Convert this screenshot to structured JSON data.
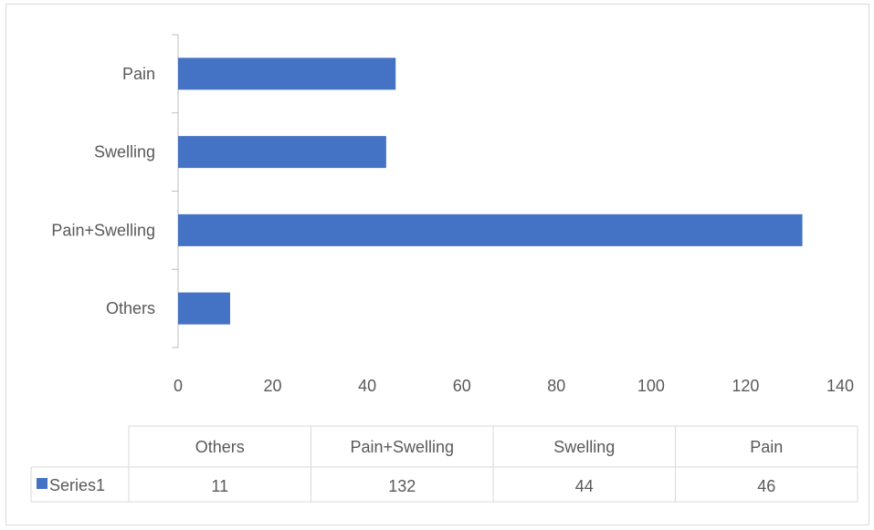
{
  "chart_data": {
    "type": "bar",
    "orientation": "horizontal",
    "categories": [
      "Others",
      "Pain+Swelling",
      "Swelling",
      "Pain"
    ],
    "series": [
      {
        "name": "Series1",
        "values": [
          11,
          132,
          44,
          46
        ],
        "color": "#4472c4"
      }
    ],
    "xlim": [
      0,
      140
    ],
    "xticks": [
      0,
      20,
      40,
      60,
      80,
      100,
      120,
      140
    ],
    "grid": false,
    "legend": "data-table"
  },
  "colors": {
    "bar": "#4472c4",
    "axis": "#bfbfbf",
    "table_border": "#d9d9d9"
  }
}
